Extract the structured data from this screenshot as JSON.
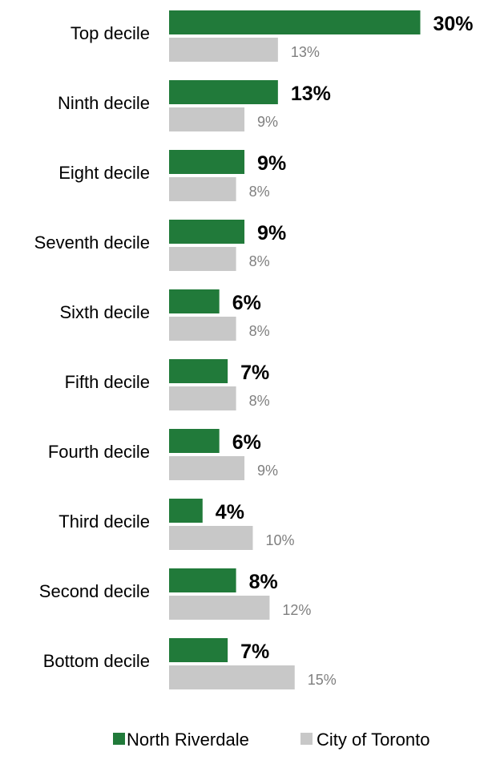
{
  "chart_data": {
    "type": "bar",
    "orientation": "horizontal",
    "categories": [
      "Top decile",
      "Ninth decile",
      "Eight decile",
      "Seventh decile",
      "Sixth decile",
      "Fifth decile",
      "Fourth decile",
      "Third decile",
      "Second decile",
      "Bottom decile"
    ],
    "series": [
      {
        "name": "North Riverdale",
        "color": "#217A3A",
        "values": [
          30,
          13,
          9,
          9,
          6,
          7,
          6,
          4,
          8,
          7
        ],
        "labels": [
          "30%",
          "13%",
          "9%",
          "9%",
          "6%",
          "7%",
          "6%",
          "4%",
          "8%",
          "7%"
        ]
      },
      {
        "name": "City of Toronto",
        "color": "#C8C8C8",
        "values": [
          13,
          9,
          8,
          8,
          8,
          8,
          9,
          10,
          12,
          15
        ],
        "labels": [
          "13%",
          "9%",
          "8%",
          "8%",
          "8%",
          "8%",
          "9%",
          "10%",
          "12%",
          "15%"
        ]
      }
    ],
    "title": "",
    "xlabel": "",
    "ylabel": "",
    "unit": "%",
    "grid": false,
    "legend": "bottom-center"
  }
}
